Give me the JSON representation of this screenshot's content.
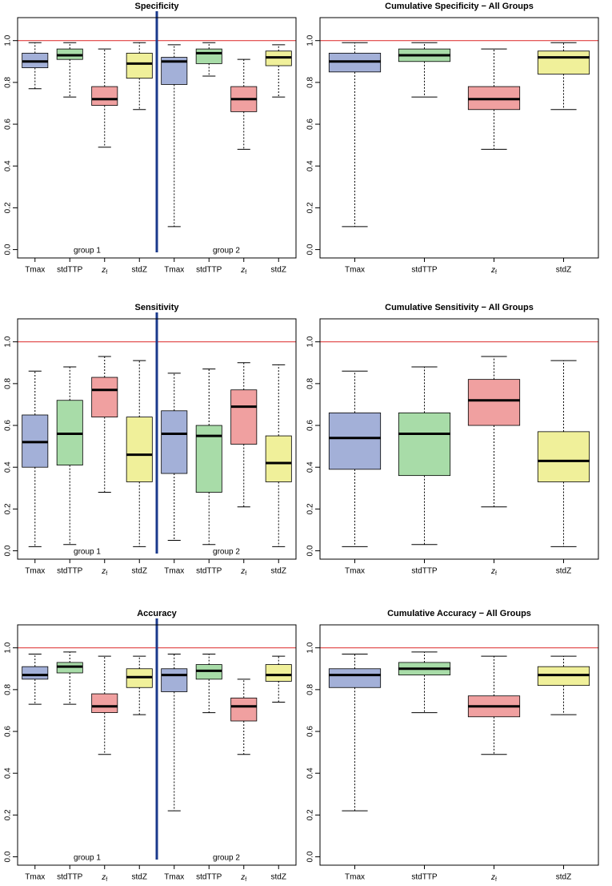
{
  "chart_data": [
    {
      "type": "box",
      "title": "Specificity",
      "categories": [
        "Tmax",
        "stdTTP",
        {
          "text": "z",
          "sub": "f"
        },
        "stdZ",
        "Tmax",
        "stdTTP",
        {
          "text": "z",
          "sub": "f"
        },
        "stdZ"
      ],
      "boxes": [
        {
          "min": 0.77,
          "q1": 0.87,
          "median": 0.9,
          "q3": 0.94,
          "max": 0.99
        },
        {
          "min": 0.73,
          "q1": 0.91,
          "median": 0.93,
          "q3": 0.96,
          "max": 0.99
        },
        {
          "min": 0.49,
          "q1": 0.69,
          "median": 0.72,
          "q3": 0.78,
          "max": 0.96
        },
        {
          "min": 0.67,
          "q1": 0.82,
          "median": 0.89,
          "q3": 0.94,
          "max": 0.99
        },
        {
          "min": 0.11,
          "q1": 0.79,
          "median": 0.9,
          "q3": 0.92,
          "max": 0.98
        },
        {
          "min": 0.83,
          "q1": 0.89,
          "median": 0.94,
          "q3": 0.96,
          "max": 0.99
        },
        {
          "min": 0.48,
          "q1": 0.66,
          "median": 0.72,
          "q3": 0.78,
          "max": 0.91
        },
        {
          "min": 0.73,
          "q1": 0.88,
          "median": 0.92,
          "q3": 0.95,
          "max": 0.98
        }
      ],
      "colors": [
        "#a3b0d8",
        "#a8dca8",
        "#f0a0a0",
        "#f0f09a",
        "#a3b0d8",
        "#a8dca8",
        "#f0a0a0",
        "#f0f09a"
      ],
      "ylim": [
        -0.04,
        1.11
      ],
      "yticks": [
        {
          "value": 0,
          "label": "0.0"
        },
        0.2,
        0.4,
        0.6,
        0.8,
        {
          "value": 1,
          "label": "1.0"
        }
      ],
      "hline": 1,
      "hline_color": "#e04040",
      "divider_color": "#1a3a8c",
      "annotations": [
        "group 1",
        "group 2"
      ]
    },
    {
      "type": "box",
      "title": "Cumulative Specificity − All Groups",
      "categories": [
        "Tmax",
        "stdTTP",
        {
          "text": "z",
          "sub": "f"
        },
        "stdZ"
      ],
      "boxes": [
        {
          "min": 0.11,
          "q1": 0.85,
          "median": 0.9,
          "q3": 0.94,
          "max": 0.99
        },
        {
          "min": 0.73,
          "q1": 0.9,
          "median": 0.93,
          "q3": 0.96,
          "max": 0.99
        },
        {
          "min": 0.48,
          "q1": 0.67,
          "median": 0.72,
          "q3": 0.78,
          "max": 0.96
        },
        {
          "min": 0.67,
          "q1": 0.84,
          "median": 0.92,
          "q3": 0.95,
          "max": 0.99
        }
      ],
      "colors": [
        "#a3b0d8",
        "#a8dca8",
        "#f0a0a0",
        "#f0f09a"
      ],
      "ylim": [
        -0.04,
        1.11
      ],
      "yticks": [
        {
          "value": 0,
          "label": "0.0"
        },
        0.2,
        0.4,
        0.6,
        0.8,
        {
          "value": 1,
          "label": "1.0"
        }
      ],
      "hline": 1,
      "hline_color": "#e04040"
    },
    {
      "type": "box",
      "title": "Sensitivity",
      "categories": [
        "Tmax",
        "stdTTP",
        {
          "text": "z",
          "sub": "f"
        },
        "stdZ",
        "Tmax",
        "stdTTP",
        {
          "text": "z",
          "sub": "f"
        },
        "stdZ"
      ],
      "boxes": [
        {
          "min": 0.02,
          "q1": 0.4,
          "median": 0.52,
          "q3": 0.65,
          "max": 0.86
        },
        {
          "min": 0.03,
          "q1": 0.41,
          "median": 0.56,
          "q3": 0.72,
          "max": 0.88
        },
        {
          "min": 0.28,
          "q1": 0.64,
          "median": 0.77,
          "q3": 0.83,
          "max": 0.93
        },
        {
          "min": 0.02,
          "q1": 0.33,
          "median": 0.46,
          "q3": 0.64,
          "max": 0.91
        },
        {
          "min": 0.05,
          "q1": 0.37,
          "median": 0.56,
          "q3": 0.67,
          "max": 0.85
        },
        {
          "min": 0.03,
          "q1": 0.28,
          "median": 0.55,
          "q3": 0.6,
          "max": 0.87
        },
        {
          "min": 0.21,
          "q1": 0.51,
          "median": 0.69,
          "q3": 0.77,
          "max": 0.9
        },
        {
          "min": 0.02,
          "q1": 0.33,
          "median": 0.42,
          "q3": 0.55,
          "max": 0.89
        }
      ],
      "colors": [
        "#a3b0d8",
        "#a8dca8",
        "#f0a0a0",
        "#f0f09a",
        "#a3b0d8",
        "#a8dca8",
        "#f0a0a0",
        "#f0f09a"
      ],
      "ylim": [
        -0.04,
        1.11
      ],
      "yticks": [
        {
          "value": 0,
          "label": "0.0"
        },
        0.2,
        0.4,
        0.6,
        0.8,
        {
          "value": 1,
          "label": "1.0"
        }
      ],
      "hline": 1,
      "hline_color": "#e04040",
      "divider_color": "#1a3a8c",
      "annotations": [
        "group 1",
        "group 2"
      ]
    },
    {
      "type": "box",
      "title": "Cumulative Sensitivity − All Groups",
      "categories": [
        "Tmax",
        "stdTTP",
        {
          "text": "z",
          "sub": "f"
        },
        "stdZ"
      ],
      "boxes": [
        {
          "min": 0.02,
          "q1": 0.39,
          "median": 0.54,
          "q3": 0.66,
          "max": 0.86
        },
        {
          "min": 0.03,
          "q1": 0.36,
          "median": 0.56,
          "q3": 0.66,
          "max": 0.88
        },
        {
          "min": 0.21,
          "q1": 0.6,
          "median": 0.72,
          "q3": 0.82,
          "max": 0.93
        },
        {
          "min": 0.02,
          "q1": 0.33,
          "median": 0.43,
          "q3": 0.57,
          "max": 0.91
        }
      ],
      "colors": [
        "#a3b0d8",
        "#a8dca8",
        "#f0a0a0",
        "#f0f09a"
      ],
      "ylim": [
        -0.04,
        1.11
      ],
      "yticks": [
        {
          "value": 0,
          "label": "0.0"
        },
        0.2,
        0.4,
        0.6,
        0.8,
        {
          "value": 1,
          "label": "1.0"
        }
      ],
      "hline": 1,
      "hline_color": "#e04040"
    },
    {
      "type": "box",
      "title": "Accuracy",
      "categories": [
        "Tmax",
        "stdTTP",
        {
          "text": "z",
          "sub": "f"
        },
        "stdZ",
        "Tmax",
        "stdTTP",
        {
          "text": "z",
          "sub": "f"
        },
        "stdZ"
      ],
      "boxes": [
        {
          "min": 0.73,
          "q1": 0.85,
          "median": 0.87,
          "q3": 0.91,
          "max": 0.97
        },
        {
          "min": 0.73,
          "q1": 0.88,
          "median": 0.91,
          "q3": 0.93,
          "max": 0.98
        },
        {
          "min": 0.49,
          "q1": 0.69,
          "median": 0.72,
          "q3": 0.78,
          "max": 0.96
        },
        {
          "min": 0.68,
          "q1": 0.81,
          "median": 0.86,
          "q3": 0.9,
          "max": 0.96
        },
        {
          "min": 0.22,
          "q1": 0.79,
          "median": 0.87,
          "q3": 0.9,
          "max": 0.97
        },
        {
          "min": 0.69,
          "q1": 0.85,
          "median": 0.89,
          "q3": 0.92,
          "max": 0.97
        },
        {
          "min": 0.49,
          "q1": 0.65,
          "median": 0.72,
          "q3": 0.76,
          "max": 0.85
        },
        {
          "min": 0.74,
          "q1": 0.84,
          "median": 0.87,
          "q3": 0.92,
          "max": 0.96
        }
      ],
      "colors": [
        "#a3b0d8",
        "#a8dca8",
        "#f0a0a0",
        "#f0f09a",
        "#a3b0d8",
        "#a8dca8",
        "#f0a0a0",
        "#f0f09a"
      ],
      "ylim": [
        -0.04,
        1.11
      ],
      "yticks": [
        {
          "value": 0,
          "label": "0.0"
        },
        0.2,
        0.4,
        0.6,
        0.8,
        {
          "value": 1,
          "label": "1.0"
        }
      ],
      "hline": 1,
      "hline_color": "#e04040",
      "divider_color": "#1a3a8c",
      "annotations": [
        "group 1",
        "group 2"
      ]
    },
    {
      "type": "box",
      "title": "Cumulative Accuracy − All Groups",
      "categories": [
        "Tmax",
        "stdTTP",
        {
          "text": "z",
          "sub": "f"
        },
        "stdZ"
      ],
      "boxes": [
        {
          "min": 0.22,
          "q1": 0.81,
          "median": 0.87,
          "q3": 0.9,
          "max": 0.97
        },
        {
          "min": 0.69,
          "q1": 0.87,
          "median": 0.9,
          "q3": 0.93,
          "max": 0.98
        },
        {
          "min": 0.49,
          "q1": 0.67,
          "median": 0.72,
          "q3": 0.77,
          "max": 0.96
        },
        {
          "min": 0.68,
          "q1": 0.82,
          "median": 0.87,
          "q3": 0.91,
          "max": 0.96
        }
      ],
      "colors": [
        "#a3b0d8",
        "#a8dca8",
        "#f0a0a0",
        "#f0f09a"
      ],
      "ylim": [
        -0.04,
        1.11
      ],
      "yticks": [
        {
          "value": 0,
          "label": "0.0"
        },
        0.2,
        0.4,
        0.6,
        0.8,
        {
          "value": 1,
          "label": "1.0"
        }
      ],
      "hline": 1,
      "hline_color": "#e04040"
    }
  ]
}
